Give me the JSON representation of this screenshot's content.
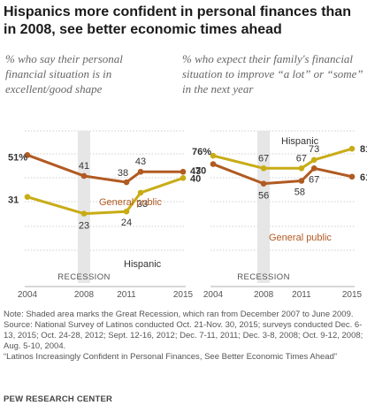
{
  "title": "Hispanics more confident in personal finances than in 2008, see better economic times ahead",
  "recession_label": "RECESSION",
  "colors": {
    "general_public": "#b15a22",
    "hispanic": "#c8ac16",
    "recession_band": "#e6e6e6",
    "grid": "#bfbfbf"
  },
  "chart_data": [
    {
      "type": "line",
      "title": "% who say their personal financial situation is in excellent/good shape",
      "x_ticks": [
        "2004",
        "2008",
        "2011",
        "2015"
      ],
      "xlim": [
        2004,
        2015
      ],
      "ylim": [
        0,
        60
      ],
      "grid": true,
      "recession": [
        2008,
        2009
      ],
      "series": [
        {
          "name": "General public",
          "color": "#b15a22",
          "points": [
            {
              "x": 2004,
              "y": 51,
              "label": "51%"
            },
            {
              "x": 2008,
              "y": 41,
              "label": "41"
            },
            {
              "x": 2011,
              "y": 38,
              "label": "38"
            },
            {
              "x": 2012,
              "y": 43,
              "label": "43"
            },
            {
              "x": 2015,
              "y": 43,
              "label": "43"
            }
          ]
        },
        {
          "name": "Hispanic",
          "color": "#c8ac16",
          "points": [
            {
              "x": 2004,
              "y": 31,
              "label": "31"
            },
            {
              "x": 2008,
              "y": 23,
              "label": "23"
            },
            {
              "x": 2011,
              "y": 24,
              "label": "24"
            },
            {
              "x": 2012,
              "y": 33,
              "label": "33"
            },
            {
              "x": 2015,
              "y": 40,
              "label": "40"
            }
          ]
        }
      ]
    },
    {
      "type": "line",
      "title": "% who expect their family's financial situation to improve “a lot” or “some” in the next year",
      "x_ticks": [
        "2004",
        "2008",
        "2011",
        "2015"
      ],
      "xlim": [
        2004,
        2015
      ],
      "ylim": [
        0,
        90
      ],
      "grid": true,
      "recession": [
        2008,
        2009
      ],
      "series": [
        {
          "name": "Hispanic",
          "color": "#c8ac16",
          "points": [
            {
              "x": 2004,
              "y": 76,
              "label": "76%"
            },
            {
              "x": 2008,
              "y": 67,
              "label": "67"
            },
            {
              "x": 2011,
              "y": 67,
              "label": "67"
            },
            {
              "x": 2012,
              "y": 73,
              "label": "73"
            },
            {
              "x": 2015,
              "y": 81,
              "label": "81"
            }
          ]
        },
        {
          "name": "General public",
          "color": "#b15a22",
          "points": [
            {
              "x": 2004,
              "y": 70,
              "label": "70"
            },
            {
              "x": 2008,
              "y": 56,
              "label": "56"
            },
            {
              "x": 2011,
              "y": 58,
              "label": "58"
            },
            {
              "x": 2012,
              "y": 67,
              "label": "67"
            },
            {
              "x": 2015,
              "y": 61,
              "label": "61"
            }
          ]
        }
      ]
    }
  ],
  "notes": {
    "note": "Note: Shaded area marks the Great Recession, which ran from December 2007 to June 2009.",
    "source": "Source: National Survey of Latinos conducted Oct. 21-Nov. 30, 2015; surveys conducted Dec. 6-13, 2015; Oct. 24-28, 2012; Sept. 12-16, 2012; Dec. 7-11, 2011; Dec. 3-8, 2008; Oct. 9-12, 2008; Aug. 5-10, 2004.",
    "report": "“Latinos Increasingly Confident in Personal Finances, See Better Economic Times Ahead”",
    "org": "PEW RESEARCH CENTER"
  }
}
